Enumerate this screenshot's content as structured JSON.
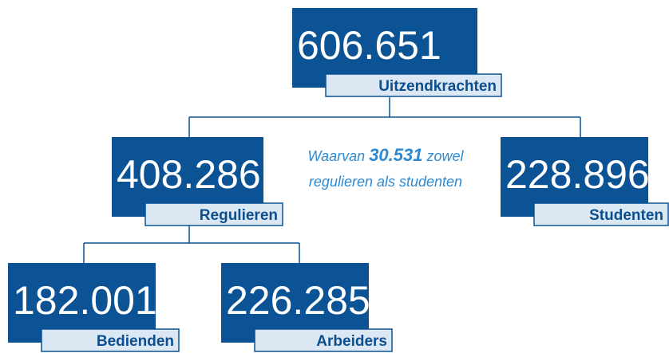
{
  "nodes": [
    {
      "value": "606.651",
      "label": "Uitzendkrachten"
    },
    {
      "value": "408.286",
      "label": "Regulieren"
    },
    {
      "value": "228.896",
      "label": "Studenten"
    },
    {
      "value": "182.001",
      "label": "Bedienden"
    },
    {
      "value": "226.285",
      "label": "Arbeiders"
    }
  ],
  "note": {
    "line1": [
      "Waarvan",
      "30.531",
      "zowel"
    ],
    "line2": "regulieren als studenten"
  }
}
